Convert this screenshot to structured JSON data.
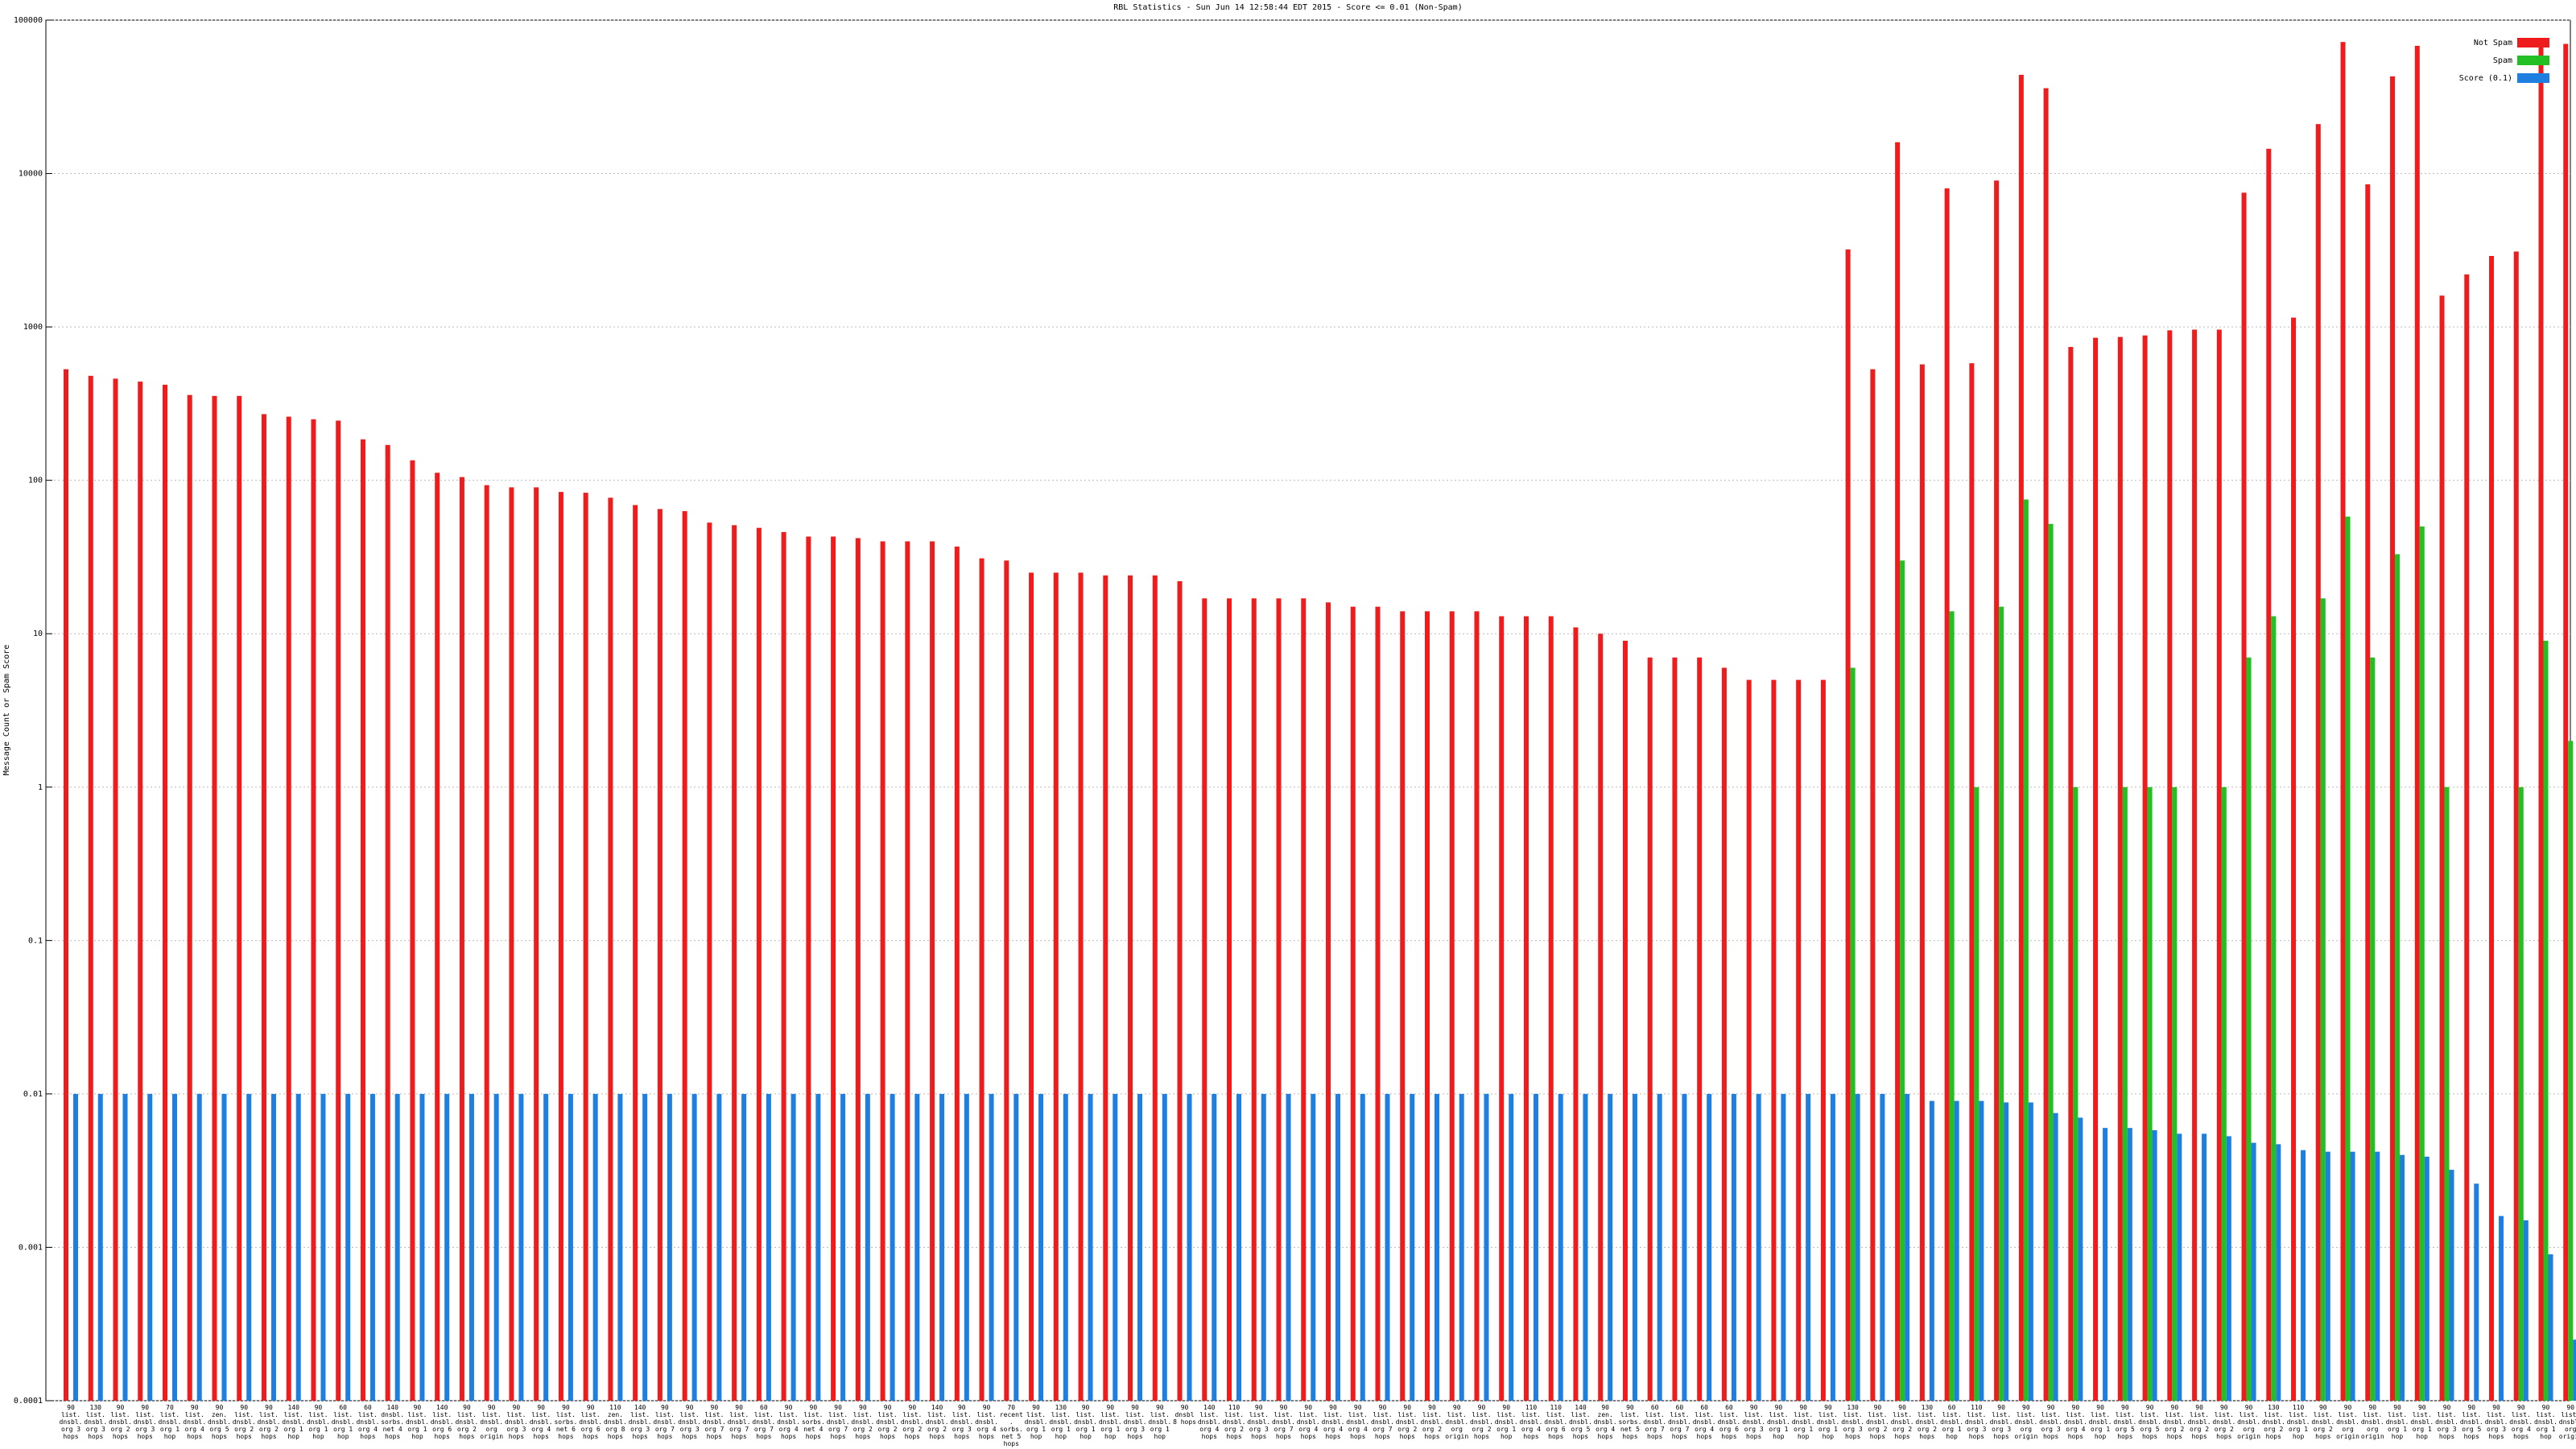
{
  "chart_data": {
    "type": "bar",
    "title": "RBL Statistics - Sun Jun 14 12:58:44 EDT 2015 - Score <= 0.01 (Non-Spam)",
    "y_label": "Message Count or Spam Score",
    "log_scale": true,
    "grid": true,
    "legend": "upper right",
    "ylim": [
      0.0001,
      100000
    ],
    "yticks": [
      0.0001,
      0.001,
      0.01,
      0.1,
      1,
      10,
      100,
      1000,
      10000,
      100000
    ],
    "categories": [
      "90 list. dnsbl. org 3 hops",
      "130 list. dnsbl. org 3 hops",
      "90 list. dnsbl. org 2 hops",
      "90 list. dnsbl. org 3 hops",
      "70 list. dnsbl. org 1 hop",
      "90 list. dnsbl. org 4 hops",
      "90 zen. dnsbl. org 5 hops",
      "90 list. dnsbl. org 2 hops",
      "90 list. dnsbl. org 2 hops",
      "140 list. dnsbl. org 1 hop",
      "90 list. dnsbl. org 1 hop",
      "60 list. dnsbl. org 1 hop",
      "60 list. dnsbl. org 4 hops",
      "140 dnsbl. sorbs. net 4 hops",
      "90 list. dnsbl. org 1 hop",
      "140 list. dnsbl. org 6 hops",
      "90 list. dnsbl. org 2 hops",
      "90 list. dnsbl. org origin",
      "90 list. dnsbl. org 3 hops",
      "90 list. dnsbl. org 4 hops",
      "90 list. sorbs. net 6 hops",
      "90 list. dnsbl. org 6 hops",
      "110 zen. dnsbl. org 8 hops",
      "140 list. dnsbl. org 3 hops",
      "90 list. dnsbl. org 7 hops",
      "90 list. dnsbl. org 3 hops",
      "90 list. dnsbl. org 7 hops",
      "90 list. dnsbl. org 7 hops",
      "60 list. dnsbl. org 7 hops",
      "90 list. dnsbl. org 4 hops",
      "90 list. sorbs. net 4 hops",
      "90 list. dnsbl. org 7 hops",
      "90 list. dnsbl. org 2 hops",
      "90 list. dnsbl. org 2 hops",
      "90 list. dnsbl. org 2 hops",
      "140 list. dnsbl. org 2 hops",
      "90 list. dnsbl. org 3 hops",
      "90 list. dnsbl. org 4 hops",
      "70 recent. sorbs. net 5 hops",
      "90 list. dnsbl. org 1 hop",
      "130 list. dnsbl. org 1 hop",
      "90 list. dnsbl. org 1 hop",
      "90 list. dnsbl. org 1 hop",
      "90 list. dnsbl. org 3 hops",
      "90 list. dnsbl. org 1 hop",
      "90 dnsbl 8 hops",
      "140 list. dnsbl. org 4 hops",
      "110 list. dnsbl. org 2 hops",
      "90 list. dnsbl. org 3 hops",
      "90 list. dnsbl. org 7 hops",
      "90 list. dnsbl. org 4 hops",
      "90 list. dnsbl. org 4 hops",
      "90 list. dnsbl. org 4 hops",
      "90 list. dnsbl. org 7 hops",
      "90 list. dnsbl. org 2 hops",
      "90 list. dnsbl. org 2 hops",
      "90 list. dnsbl. org origin",
      "90 list. dnsbl. org 2 hops",
      "90 list. dnsbl. org 1 hop",
      "110 list. dnsbl. org 4 hops",
      "110 list. dnsbl. org 6 hops",
      "140 list. dnsbl. org 5 hops",
      "90 zen. dnsbl. org 4 hops",
      "90 list. sorbs. net 5 hops",
      "60 list. dnsbl. org 7 hops",
      "60 list. dnsbl. org 7 hops",
      "60 list. dnsbl. org 4 hops",
      "60 list. dnsbl. org 6 hops",
      "90 list. dnsbl. org 3 hops",
      "90 list. dnsbl. org 1 hop",
      "90 list. dnsbl. org 1 hop",
      "90 list. dnsbl. org 1 hop",
      "130 list. dnsbl. org 3 hops",
      "90 list. dnsbl. org 2 hops",
      "90 list. dnsbl. org 2 hops",
      "130 list. dnsbl. org 2 hops",
      "60 list. dnsbl. org 1 hop",
      "110 list. dnsbl. org 3 hops",
      "90 list. dnsbl. org 3 hops",
      "90 list. dnsbl. org origin",
      "90 list. dnsbl. org 3 hops",
      "90 list. dnsbl. org 4 hops",
      "90 list. dnsbl. org 1 hop",
      "90 list. dnsbl. org 5 hops",
      "90 list. dnsbl. org 5 hops",
      "90 list. dnsbl. org 2 hops",
      "90 list. dnsbl. org 2 hops",
      "90 list. dnsbl. org 2 hops",
      "90 list. dnsbl. org origin",
      "130 list. dnsbl. org 2 hops",
      "110 list. dnsbl. org 1 hop",
      "90 list. dnsbl. org 2 hops",
      "90 list. dnsbl. org origin",
      "90 list. dnsbl. org origin",
      "90 list. dnsbl. org 1 hop",
      "90 list. dnsbl. org 1 hop",
      "90 list. dnsbl. org 3 hops",
      "90 list. dnsbl. org 5 hops",
      "90 list. dnsbl. org 3 hops",
      "90 list. dnsbl. org 4 hops",
      "90 list. dnsbl. org 1 hop",
      "90 list. dnsbl. org origin"
    ],
    "series": [
      {
        "name": "Not Spam",
        "color": "#ee1c1c",
        "values": [
          530,
          480,
          460,
          440,
          420,
          360,
          355,
          355,
          270,
          260,
          250,
          245,
          185,
          170,
          135,
          112,
          105,
          93,
          90,
          90,
          84,
          83,
          77,
          69,
          65,
          63,
          53,
          51,
          49,
          46,
          43,
          43,
          42,
          40,
          40,
          40,
          37,
          31,
          30,
          25,
          25,
          25,
          24,
          24,
          24,
          22,
          17,
          17,
          17,
          17,
          17,
          16,
          15,
          15,
          14,
          14,
          14,
          14,
          13,
          13,
          13,
          11,
          10,
          9,
          7,
          7,
          7,
          6,
          5,
          5,
          5,
          5,
          3200,
          530,
          16000,
          570,
          8000,
          580,
          9000,
          44000,
          36000,
          740,
          850,
          860,
          880,
          950,
          960,
          960,
          7500,
          14500,
          1150,
          21000,
          72000,
          8500,
          43000,
          68000,
          1600,
          2200,
          2900,
          3100,
          70000,
          70000
        ]
      },
      {
        "name": "Spam",
        "color": "#22c022",
        "values": [
          null,
          null,
          null,
          null,
          null,
          null,
          null,
          null,
          null,
          null,
          null,
          null,
          null,
          null,
          null,
          null,
          null,
          null,
          null,
          null,
          null,
          null,
          null,
          null,
          null,
          null,
          null,
          null,
          null,
          null,
          null,
          null,
          null,
          null,
          null,
          null,
          null,
          null,
          null,
          null,
          null,
          null,
          null,
          null,
          null,
          null,
          null,
          null,
          null,
          null,
          null,
          null,
          null,
          null,
          null,
          null,
          null,
          null,
          null,
          null,
          null,
          null,
          null,
          null,
          null,
          null,
          null,
          null,
          null,
          null,
          null,
          null,
          6,
          null,
          30,
          null,
          14,
          1,
          15,
          75,
          52,
          1,
          null,
          1,
          1,
          1,
          null,
          1,
          7,
          13,
          null,
          17,
          58,
          7,
          33,
          50,
          1,
          null,
          null,
          1,
          9,
          2
        ]
      },
      {
        "name": "Score (0.1)",
        "color": "#1e7fe0",
        "values": [
          0.01,
          0.01,
          0.01,
          0.01,
          0.01,
          0.01,
          0.01,
          0.01,
          0.01,
          0.01,
          0.01,
          0.01,
          0.01,
          0.01,
          0.01,
          0.01,
          0.01,
          0.01,
          0.01,
          0.01,
          0.01,
          0.01,
          0.01,
          0.01,
          0.01,
          0.01,
          0.01,
          0.01,
          0.01,
          0.01,
          0.01,
          0.01,
          0.01,
          0.01,
          0.01,
          0.01,
          0.01,
          0.01,
          0.01,
          0.01,
          0.01,
          0.01,
          0.01,
          0.01,
          0.01,
          0.01,
          0.01,
          0.01,
          0.01,
          0.01,
          0.01,
          0.01,
          0.01,
          0.01,
          0.01,
          0.01,
          0.01,
          0.01,
          0.01,
          0.01,
          0.01,
          0.01,
          0.01,
          0.01,
          0.01,
          0.01,
          0.01,
          0.01,
          0.01,
          0.01,
          0.01,
          0.01,
          0.01,
          0.01,
          0.01,
          0.009,
          0.009,
          0.009,
          0.0088,
          0.0088,
          0.0075,
          0.007,
          0.006,
          0.006,
          0.0058,
          0.0055,
          0.0055,
          0.0053,
          0.0048,
          0.0047,
          0.0043,
          0.0042,
          0.0042,
          0.0042,
          0.004,
          0.0039,
          0.0032,
          0.0026,
          0.0016,
          0.0015,
          0.0009,
          0.00025
        ]
      }
    ]
  }
}
